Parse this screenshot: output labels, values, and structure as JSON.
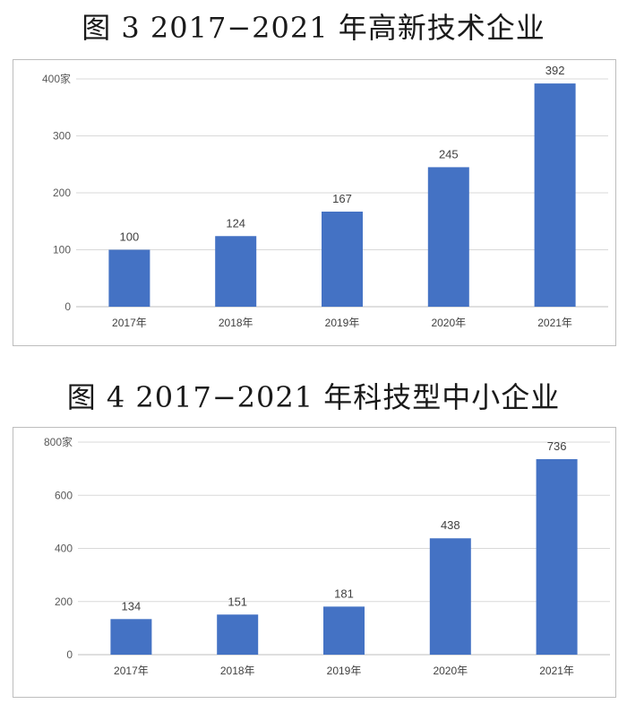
{
  "figures": [
    {
      "title": "图 3  2017−2021 年高新技术企业"
    },
    {
      "title": "图 4 2017−2021 年科技型中小企业"
    }
  ],
  "chart_data": [
    {
      "type": "bar",
      "categories": [
        "2017年",
        "2018年",
        "2019年",
        "2020年",
        "2021年"
      ],
      "values": [
        100,
        124,
        167,
        245,
        392
      ],
      "data_labels": [
        "100",
        "124",
        "167",
        "245",
        "392"
      ],
      "yticks": [
        "0",
        "100",
        "200",
        "300",
        "400家"
      ],
      "ytick_values": [
        0,
        100,
        200,
        300,
        400
      ],
      "ylim": [
        0,
        400
      ],
      "grid": true,
      "legend": "none",
      "bar_color": "#4472C4"
    },
    {
      "type": "bar",
      "categories": [
        "2017年",
        "2018年",
        "2019年",
        "2020年",
        "2021年"
      ],
      "values": [
        134,
        151,
        181,
        438,
        736
      ],
      "data_labels": [
        "134",
        "151",
        "181",
        "438",
        "736"
      ],
      "yticks": [
        "0",
        "200",
        "400",
        "600",
        "800家"
      ],
      "ytick_values": [
        0,
        200,
        400,
        600,
        800
      ],
      "ylim": [
        0,
        800
      ],
      "grid": true,
      "legend": "none",
      "bar_color": "#4472C4"
    }
  ]
}
